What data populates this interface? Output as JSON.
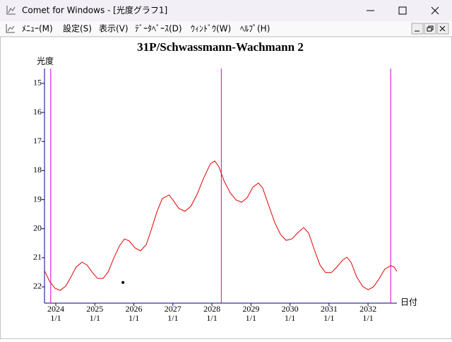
{
  "window": {
    "title": "Comet for Windows - [光度グラフ1]"
  },
  "menu": [
    "ﾒﾆｭｰ(M)",
    "設定(S)",
    "表示(V)",
    "ﾃﾞｰﾀﾍﾞｰｽ(D)",
    "ｳｨﾝﾄﾞｳ(W)",
    "ﾍﾙﾌﾟ(H)"
  ],
  "chart_data": {
    "type": "line",
    "title": "31P/Schwassmann-Wachmann 2",
    "ylabel": "光度",
    "xlabel": "日付",
    "x": [
      2023.71,
      2023.84,
      2023.98,
      2024.11,
      2024.25,
      2024.38,
      2024.52,
      2024.67,
      2024.8,
      2024.94,
      2025.07,
      2025.21,
      2025.34,
      2025.48,
      2025.63,
      2025.76,
      2025.88,
      2026.03,
      2026.17,
      2026.32,
      2026.44,
      2026.59,
      2026.73,
      2026.9,
      2027.0,
      2027.15,
      2027.31,
      2027.46,
      2027.62,
      2027.78,
      2027.96,
      2028.07,
      2028.18,
      2028.31,
      2028.47,
      2028.62,
      2028.76,
      2028.9,
      2029.05,
      2029.19,
      2029.3,
      2029.45,
      2029.61,
      2029.76,
      2029.9,
      2030.05,
      2030.19,
      2030.35,
      2030.48,
      2030.62,
      2030.77,
      2030.91,
      2031.06,
      2031.2,
      2031.35,
      2031.46,
      2031.57,
      2031.71,
      2031.86,
      2032.0,
      2032.14,
      2032.29,
      2032.43,
      2032.58,
      2032.67,
      2032.74
    ],
    "series": [
      {
        "color": "#e00000",
        "values": [
          21.44,
          21.81,
          22.05,
          22.12,
          21.98,
          21.68,
          21.32,
          21.15,
          21.25,
          21.51,
          21.71,
          21.71,
          21.49,
          21.03,
          20.59,
          20.35,
          20.42,
          20.66,
          20.76,
          20.54,
          20.06,
          19.42,
          18.96,
          18.84,
          19.01,
          19.3,
          19.4,
          19.23,
          18.82,
          18.28,
          17.77,
          17.67,
          17.87,
          18.35,
          18.77,
          19.01,
          19.09,
          18.94,
          18.57,
          18.43,
          18.6,
          19.18,
          19.79,
          20.2,
          20.4,
          20.35,
          20.15,
          19.96,
          20.15,
          20.71,
          21.25,
          21.51,
          21.51,
          21.32,
          21.08,
          20.98,
          21.17,
          21.66,
          21.98,
          22.1,
          22.0,
          21.71,
          21.39,
          21.27,
          21.32,
          21.47
        ]
      }
    ],
    "markers": {
      "color": "#cc00cc",
      "x": [
        2023.87,
        2028.24,
        2032.58
      ]
    },
    "points": {
      "color": "#000000",
      "x": [
        2025.72
      ],
      "values": [
        21.85
      ]
    },
    "xlim": [
      2023.71,
      2032.74
    ],
    "ylim": [
      22.56,
      14.49
    ],
    "xticks": [
      2024,
      2025,
      2026,
      2027,
      2028,
      2029,
      2030,
      2031,
      2032
    ],
    "xtick_sublabels": [
      "1/1",
      "1/1",
      "1/1",
      "1/1",
      "1/1",
      "1/1",
      "1/1",
      "1/1",
      "1/1"
    ],
    "yticks": [
      15,
      16,
      17,
      18,
      19,
      20,
      21,
      22
    ],
    "axis_color": "#000080"
  }
}
